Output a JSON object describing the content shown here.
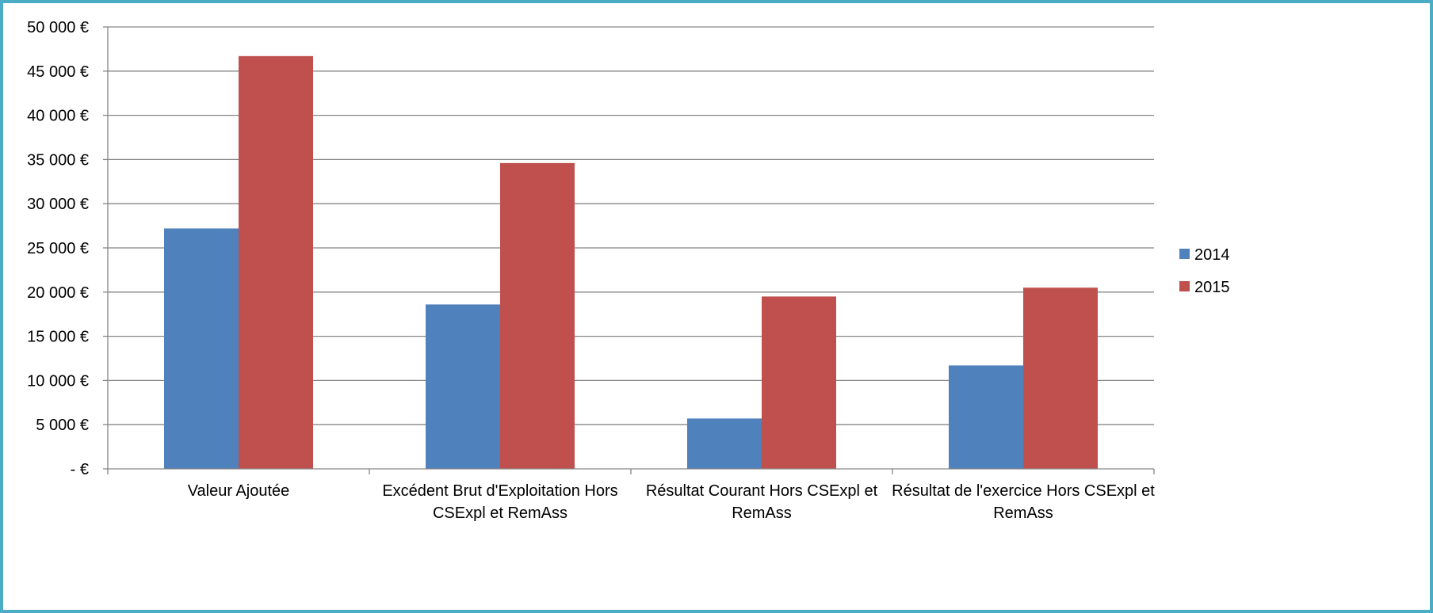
{
  "chart_data": {
    "type": "bar",
    "title": "",
    "xlabel": "",
    "ylabel": "",
    "categories": [
      [
        "Valeur Ajoutée"
      ],
      [
        "Excédent Brut d'Exploitation Hors",
        "CSExpl et RemAss"
      ],
      [
        "Résultat Courant Hors CSExpl et",
        "RemAss"
      ],
      [
        "Résultat de l'exercice Hors CSExpl et",
        "RemAss"
      ]
    ],
    "series": [
      {
        "name": "2014",
        "color": "#4f81bd",
        "values": [
          27200,
          18600,
          5700,
          11700
        ]
      },
      {
        "name": "2015",
        "color": "#c0504d",
        "values": [
          46700,
          34600,
          19500,
          20500
        ]
      }
    ],
    "ylim": [
      0,
      50000
    ],
    "yticks": [
      0,
      5000,
      10000,
      15000,
      20000,
      25000,
      30000,
      35000,
      40000,
      45000,
      50000
    ],
    "ytick_labels": [
      "-  €",
      "5 000 €",
      "10 000 €",
      "15 000 €",
      "20 000 €",
      "25 000 €",
      "30 000 €",
      "35 000 €",
      "40 000 €",
      "45 000 €",
      "50 000 €"
    ],
    "grid": true,
    "legend_position": "right"
  }
}
